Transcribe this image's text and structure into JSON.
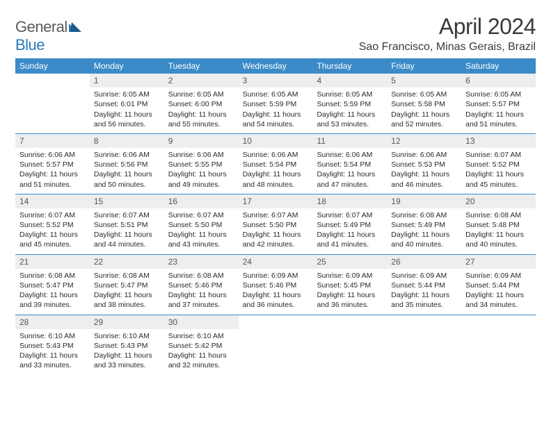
{
  "logo": {
    "text1": "General",
    "text2": "Blue"
  },
  "title": "April 2024",
  "location": "Sao Francisco, Minas Gerais, Brazil",
  "colors": {
    "header_bg": "#3b8bc8",
    "header_text": "#ffffff",
    "daynum_bg": "#eceef0",
    "row_divider": "#3b8bc8",
    "body_text": "#2a2a2a",
    "logo_gray": "#5a5a5a",
    "logo_blue": "#2a7ab8"
  },
  "weekdays": [
    "Sunday",
    "Monday",
    "Tuesday",
    "Wednesday",
    "Thursday",
    "Friday",
    "Saturday"
  ],
  "weeks": [
    [
      {
        "n": "",
        "sr": "",
        "ss": "",
        "dl": ""
      },
      {
        "n": "1",
        "sr": "Sunrise: 6:05 AM",
        "ss": "Sunset: 6:01 PM",
        "dl": "Daylight: 11 hours and 56 minutes."
      },
      {
        "n": "2",
        "sr": "Sunrise: 6:05 AM",
        "ss": "Sunset: 6:00 PM",
        "dl": "Daylight: 11 hours and 55 minutes."
      },
      {
        "n": "3",
        "sr": "Sunrise: 6:05 AM",
        "ss": "Sunset: 5:59 PM",
        "dl": "Daylight: 11 hours and 54 minutes."
      },
      {
        "n": "4",
        "sr": "Sunrise: 6:05 AM",
        "ss": "Sunset: 5:59 PM",
        "dl": "Daylight: 11 hours and 53 minutes."
      },
      {
        "n": "5",
        "sr": "Sunrise: 6:05 AM",
        "ss": "Sunset: 5:58 PM",
        "dl": "Daylight: 11 hours and 52 minutes."
      },
      {
        "n": "6",
        "sr": "Sunrise: 6:05 AM",
        "ss": "Sunset: 5:57 PM",
        "dl": "Daylight: 11 hours and 51 minutes."
      }
    ],
    [
      {
        "n": "7",
        "sr": "Sunrise: 6:06 AM",
        "ss": "Sunset: 5:57 PM",
        "dl": "Daylight: 11 hours and 51 minutes."
      },
      {
        "n": "8",
        "sr": "Sunrise: 6:06 AM",
        "ss": "Sunset: 5:56 PM",
        "dl": "Daylight: 11 hours and 50 minutes."
      },
      {
        "n": "9",
        "sr": "Sunrise: 6:06 AM",
        "ss": "Sunset: 5:55 PM",
        "dl": "Daylight: 11 hours and 49 minutes."
      },
      {
        "n": "10",
        "sr": "Sunrise: 6:06 AM",
        "ss": "Sunset: 5:54 PM",
        "dl": "Daylight: 11 hours and 48 minutes."
      },
      {
        "n": "11",
        "sr": "Sunrise: 6:06 AM",
        "ss": "Sunset: 5:54 PM",
        "dl": "Daylight: 11 hours and 47 minutes."
      },
      {
        "n": "12",
        "sr": "Sunrise: 6:06 AM",
        "ss": "Sunset: 5:53 PM",
        "dl": "Daylight: 11 hours and 46 minutes."
      },
      {
        "n": "13",
        "sr": "Sunrise: 6:07 AM",
        "ss": "Sunset: 5:52 PM",
        "dl": "Daylight: 11 hours and 45 minutes."
      }
    ],
    [
      {
        "n": "14",
        "sr": "Sunrise: 6:07 AM",
        "ss": "Sunset: 5:52 PM",
        "dl": "Daylight: 11 hours and 45 minutes."
      },
      {
        "n": "15",
        "sr": "Sunrise: 6:07 AM",
        "ss": "Sunset: 5:51 PM",
        "dl": "Daylight: 11 hours and 44 minutes."
      },
      {
        "n": "16",
        "sr": "Sunrise: 6:07 AM",
        "ss": "Sunset: 5:50 PM",
        "dl": "Daylight: 11 hours and 43 minutes."
      },
      {
        "n": "17",
        "sr": "Sunrise: 6:07 AM",
        "ss": "Sunset: 5:50 PM",
        "dl": "Daylight: 11 hours and 42 minutes."
      },
      {
        "n": "18",
        "sr": "Sunrise: 6:07 AM",
        "ss": "Sunset: 5:49 PM",
        "dl": "Daylight: 11 hours and 41 minutes."
      },
      {
        "n": "19",
        "sr": "Sunrise: 6:08 AM",
        "ss": "Sunset: 5:49 PM",
        "dl": "Daylight: 11 hours and 40 minutes."
      },
      {
        "n": "20",
        "sr": "Sunrise: 6:08 AM",
        "ss": "Sunset: 5:48 PM",
        "dl": "Daylight: 11 hours and 40 minutes."
      }
    ],
    [
      {
        "n": "21",
        "sr": "Sunrise: 6:08 AM",
        "ss": "Sunset: 5:47 PM",
        "dl": "Daylight: 11 hours and 39 minutes."
      },
      {
        "n": "22",
        "sr": "Sunrise: 6:08 AM",
        "ss": "Sunset: 5:47 PM",
        "dl": "Daylight: 11 hours and 38 minutes."
      },
      {
        "n": "23",
        "sr": "Sunrise: 6:08 AM",
        "ss": "Sunset: 5:46 PM",
        "dl": "Daylight: 11 hours and 37 minutes."
      },
      {
        "n": "24",
        "sr": "Sunrise: 6:09 AM",
        "ss": "Sunset: 5:46 PM",
        "dl": "Daylight: 11 hours and 36 minutes."
      },
      {
        "n": "25",
        "sr": "Sunrise: 6:09 AM",
        "ss": "Sunset: 5:45 PM",
        "dl": "Daylight: 11 hours and 36 minutes."
      },
      {
        "n": "26",
        "sr": "Sunrise: 6:09 AM",
        "ss": "Sunset: 5:44 PM",
        "dl": "Daylight: 11 hours and 35 minutes."
      },
      {
        "n": "27",
        "sr": "Sunrise: 6:09 AM",
        "ss": "Sunset: 5:44 PM",
        "dl": "Daylight: 11 hours and 34 minutes."
      }
    ],
    [
      {
        "n": "28",
        "sr": "Sunrise: 6:10 AM",
        "ss": "Sunset: 5:43 PM",
        "dl": "Daylight: 11 hours and 33 minutes."
      },
      {
        "n": "29",
        "sr": "Sunrise: 6:10 AM",
        "ss": "Sunset: 5:43 PM",
        "dl": "Daylight: 11 hours and 33 minutes."
      },
      {
        "n": "30",
        "sr": "Sunrise: 6:10 AM",
        "ss": "Sunset: 5:42 PM",
        "dl": "Daylight: 11 hours and 32 minutes."
      },
      {
        "n": "",
        "sr": "",
        "ss": "",
        "dl": ""
      },
      {
        "n": "",
        "sr": "",
        "ss": "",
        "dl": ""
      },
      {
        "n": "",
        "sr": "",
        "ss": "",
        "dl": ""
      },
      {
        "n": "",
        "sr": "",
        "ss": "",
        "dl": ""
      }
    ]
  ]
}
